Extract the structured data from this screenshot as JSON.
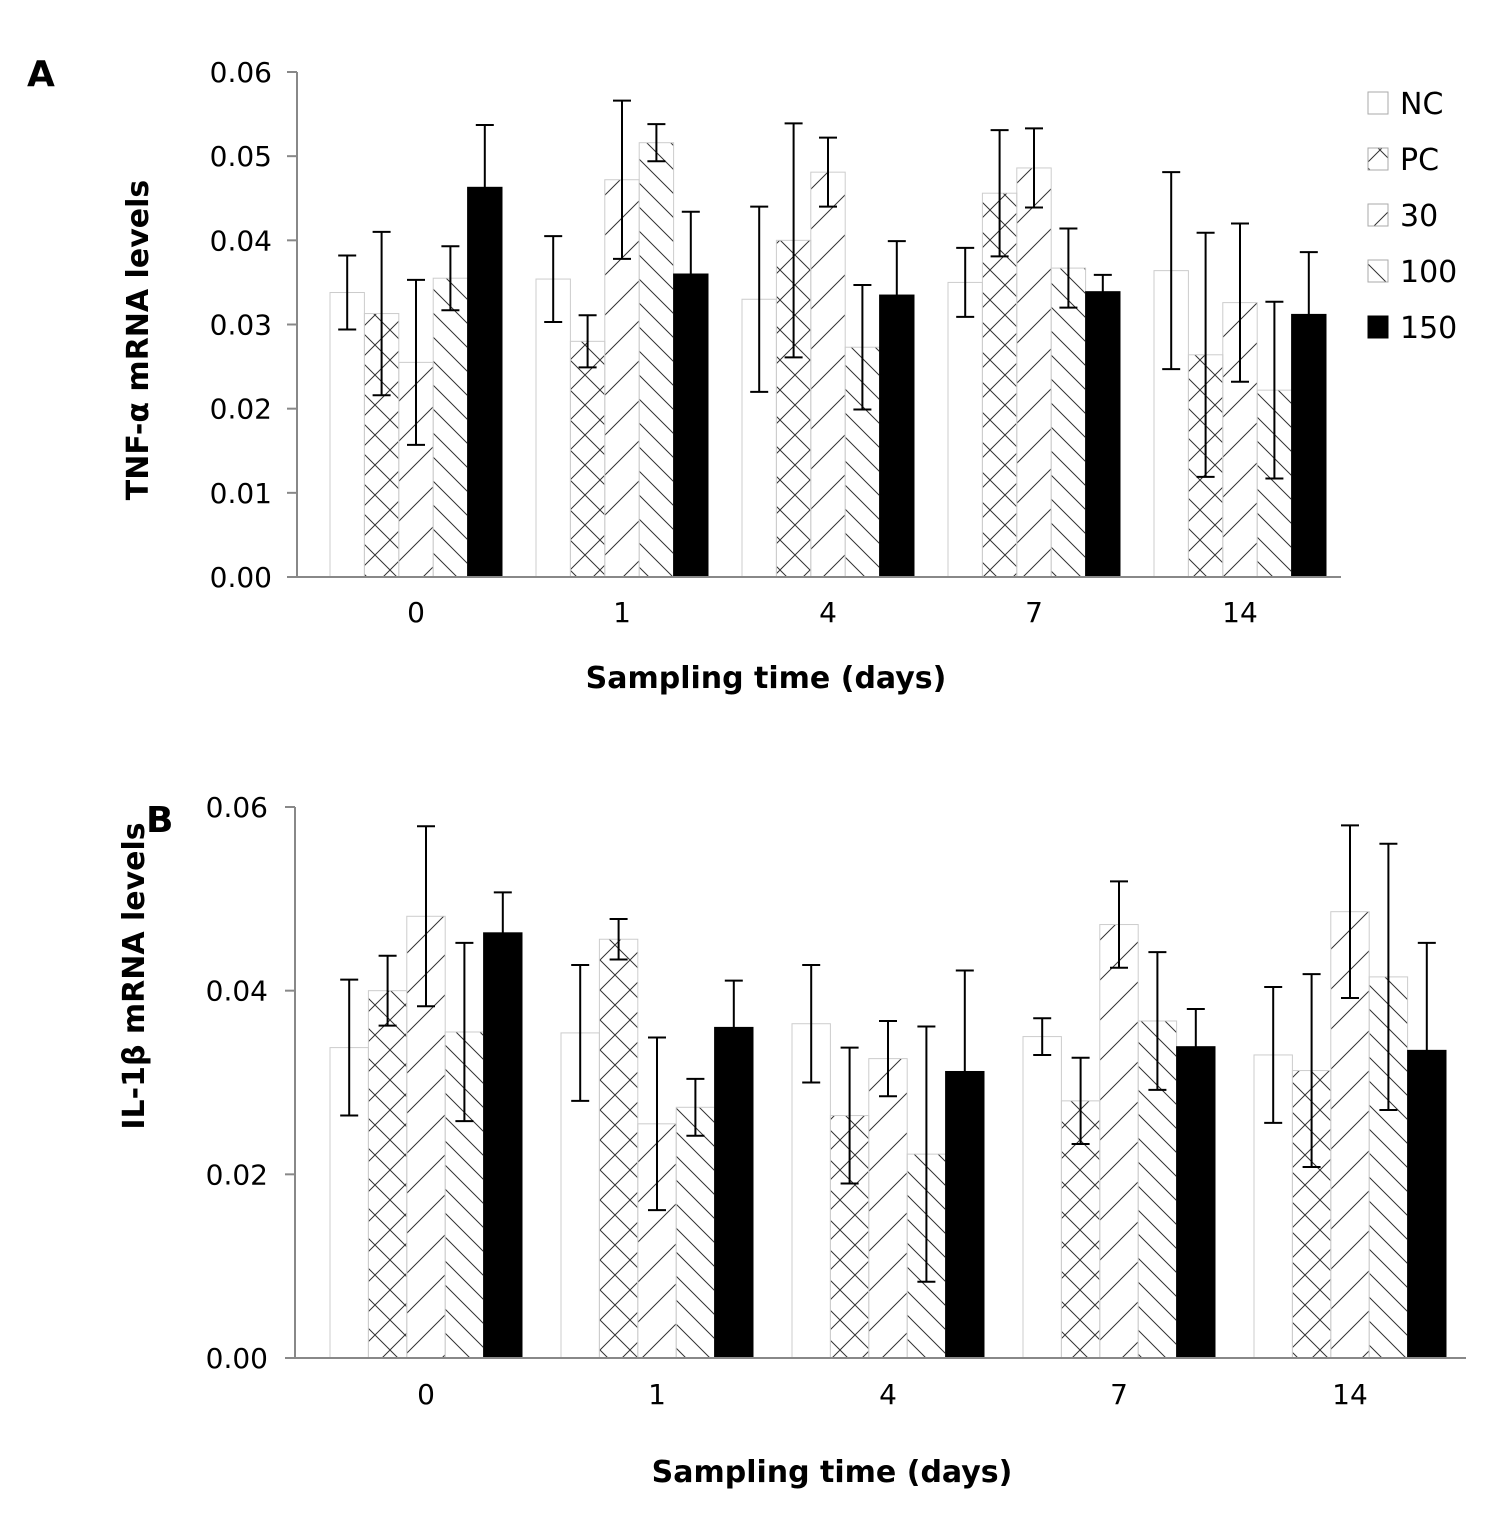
{
  "chart_data": [
    {
      "panel": "A",
      "type": "bar",
      "ylabel": "TNF-α  mRNA  levels",
      "xlabel": "Sampling time (days)",
      "categories": [
        "0",
        "1",
        "4",
        "7",
        "14"
      ],
      "ylim": [
        0,
        0.06
      ],
      "yticks": [
        0,
        0.01,
        0.02,
        0.03,
        0.04,
        0.05,
        0.06
      ],
      "ytick_labels": [
        "0.00",
        "0.01",
        "0.02",
        "0.03",
        "0.04",
        "0.05",
        "0.06"
      ],
      "series": [
        {
          "name": "NC",
          "values": [
            0.0338,
            0.0354,
            0.033,
            0.035,
            0.0364
          ],
          "errors": [
            0.0044,
            0.0051,
            0.011,
            0.0041,
            0.0117
          ]
        },
        {
          "name": "PC",
          "values": [
            0.0313,
            0.028,
            0.04,
            0.0456,
            0.0264
          ],
          "errors": [
            0.0097,
            0.0031,
            0.0139,
            0.0075,
            0.0145
          ]
        },
        {
          "name": "30",
          "values": [
            0.0255,
            0.0472,
            0.0481,
            0.0486,
            0.0326
          ],
          "errors": [
            0.0098,
            0.0094,
            0.0041,
            0.0047,
            0.0094
          ]
        },
        {
          "name": "100",
          "values": [
            0.0355,
            0.0516,
            0.0273,
            0.0367,
            0.0222
          ],
          "errors": [
            0.0038,
            0.0022,
            0.0074,
            0.0047,
            0.0105
          ]
        },
        {
          "name": "150",
          "values": [
            0.0463,
            0.036,
            0.0335,
            0.0339,
            0.0312
          ],
          "errors": [
            0.0074,
            0.0074,
            0.0064,
            0.002,
            0.0074
          ]
        }
      ],
      "legend": {
        "position": "top-right",
        "entries": [
          "NC",
          "PC",
          "30",
          "100",
          "150"
        ]
      }
    },
    {
      "panel": "B",
      "type": "bar",
      "ylabel": "IL-1β  mRNA levels",
      "xlabel": "Sampling time (days)",
      "categories": [
        "0",
        "1",
        "4",
        "7",
        "14"
      ],
      "ylim": [
        0,
        0.06
      ],
      "yticks": [
        0,
        0.02,
        0.04,
        0.06
      ],
      "ytick_labels": [
        "0.00",
        "0.02",
        "0.04",
        "0.06"
      ],
      "series": [
        {
          "name": "NC",
          "values": [
            0.0338,
            0.0354,
            0.0364,
            0.035,
            0.033
          ],
          "errors": [
            0.0074,
            0.0074,
            0.0064,
            0.002,
            0.0074
          ]
        },
        {
          "name": "PC",
          "values": [
            0.04,
            0.0456,
            0.0264,
            0.028,
            0.0313
          ],
          "errors": [
            0.0038,
            0.0022,
            0.0074,
            0.0047,
            0.0105
          ]
        },
        {
          "name": "30",
          "values": [
            0.0481,
            0.0255,
            0.0326,
            0.0472,
            0.0486
          ],
          "errors": [
            0.0098,
            0.0094,
            0.0041,
            0.0047,
            0.0094
          ]
        },
        {
          "name": "100",
          "values": [
            0.0355,
            0.0273,
            0.0222,
            0.0367,
            0.0415
          ],
          "errors": [
            0.0097,
            0.0031,
            0.0139,
            0.0075,
            0.0145
          ]
        },
        {
          "name": "150",
          "values": [
            0.0463,
            0.036,
            0.0312,
            0.0339,
            0.0335
          ],
          "errors": [
            0.0044,
            0.0051,
            0.011,
            0.0041,
            0.0117
          ]
        }
      ]
    }
  ],
  "panels": {
    "a": {
      "letter": "A"
    },
    "b": {
      "letter": "B"
    }
  },
  "legend": {
    "entries": [
      {
        "label": "NC",
        "pattern": "open"
      },
      {
        "label": "PC",
        "pattern": "crosshatch"
      },
      {
        "label": "30",
        "pattern": "forward-diagonal"
      },
      {
        "label": "100",
        "pattern": "backward-diagonal"
      },
      {
        "label": "150",
        "pattern": "solid"
      }
    ]
  },
  "colors": {
    "ink": "#000000",
    "axis": "#888888",
    "bar_outline": "#cccccc",
    "hatch": "#333333",
    "paper": "#ffffff"
  }
}
